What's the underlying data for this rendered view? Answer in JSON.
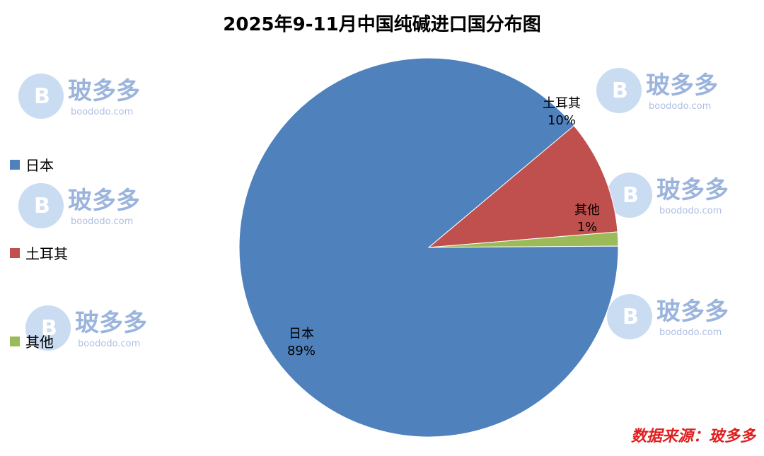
{
  "title": "2025年9-11月中国纯碱进口国分布图",
  "source": "数据来源：玻多多",
  "watermark": {
    "name": "玻多多",
    "url": "boododo.com"
  },
  "chart_data": {
    "type": "pie",
    "title": "2025年9-11月中国纯碱进口国分布图",
    "legend_position": "left",
    "slices": [
      {
        "label": "日本",
        "percent_label": "89%",
        "value": 89.0,
        "color": "#4f81bd"
      },
      {
        "label": "土耳其",
        "percent_label": "10%",
        "value": 9.8,
        "color": "#c0504d"
      },
      {
        "label": "其他",
        "percent_label": "1%",
        "value": 1.2,
        "color": "#9bbb59"
      }
    ]
  }
}
